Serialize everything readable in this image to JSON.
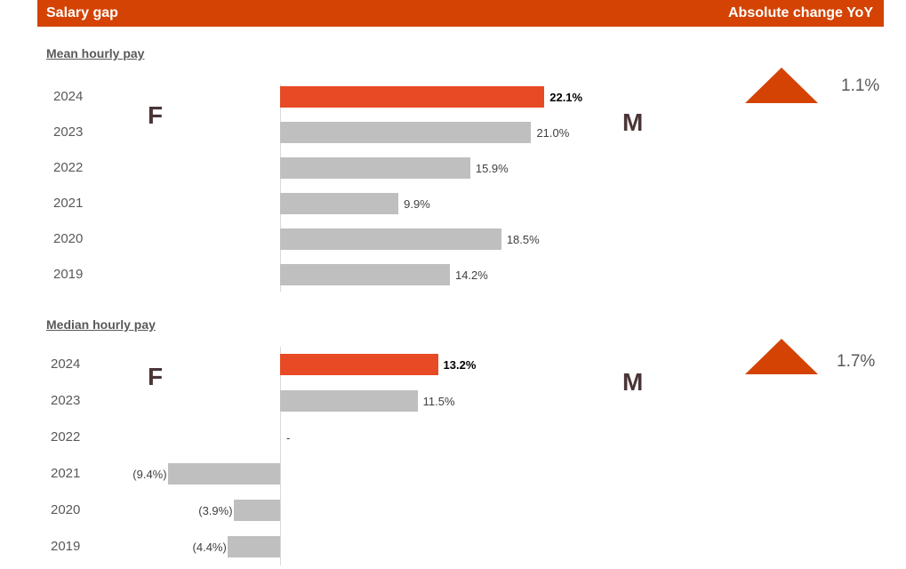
{
  "header": {
    "title": "Salary gap",
    "right": "Absolute change YoY"
  },
  "colors": {
    "header": "#D44304",
    "highlight": "#E84A25",
    "bar": "#BFBFBF",
    "triangle": "#D44304"
  },
  "chart_data": [
    {
      "type": "bar",
      "orientation": "horizontal",
      "title": "Mean hourly pay",
      "categories": [
        "2024",
        "2023",
        "2022",
        "2021",
        "2020",
        "2019"
      ],
      "values": [
        22.1,
        21.0,
        15.9,
        9.9,
        18.5,
        14.2
      ],
      "labels": [
        "22.1%",
        "21.0%",
        "15.9%",
        "9.9%",
        "18.5%",
        "14.2%"
      ],
      "left_label": "F",
      "right_label": "M",
      "change": {
        "direction": "up",
        "label": "1.1%",
        "icon": "triangle-up-icon"
      }
    },
    {
      "type": "bar",
      "orientation": "horizontal",
      "title": "Median hourly pay",
      "categories": [
        "2024",
        "2023",
        "2022",
        "2021",
        "2020",
        "2019"
      ],
      "values": [
        13.2,
        11.5,
        0,
        -9.4,
        -3.9,
        -4.4
      ],
      "labels": [
        "13.2%",
        "11.5%",
        "-",
        "(9.4%)",
        "(3.9%)",
        "(4.4%)"
      ],
      "left_label": "F",
      "right_label": "M",
      "change": {
        "direction": "up",
        "label": "1.7%",
        "icon": "triangle-up-icon"
      }
    }
  ]
}
